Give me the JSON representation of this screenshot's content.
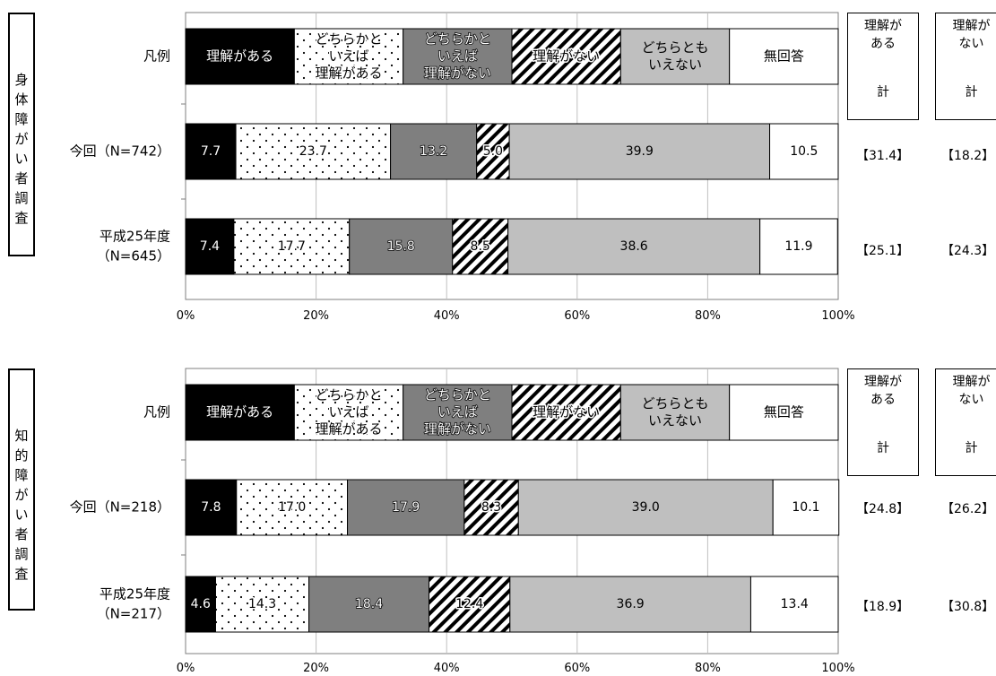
{
  "chart_data": [
    {
      "type": "bar",
      "stacked": true,
      "orientation": "horizontal",
      "group_label": "身体障がい者調査",
      "legend_row_label": "凡例",
      "categories": [
        "今回（N=742）",
        "平成25年度（N=645）"
      ],
      "category_lines": [
        [
          "今回（N=742）"
        ],
        [
          "平成25年度",
          "（N=645）"
        ]
      ],
      "series": [
        {
          "name": "理解がある",
          "values": [
            7.7,
            7.4
          ]
        },
        {
          "name": "どちらかといえば理解がある",
          "values": [
            23.7,
            17.7
          ]
        },
        {
          "name": "どちらかといえば理解がない",
          "values": [
            13.2,
            15.8
          ]
        },
        {
          "name": "理解がない",
          "values": [
            5.0,
            8.5
          ]
        },
        {
          "name": "どちらともいえない",
          "values": [
            39.9,
            38.6
          ]
        },
        {
          "name": "無回答",
          "values": [
            10.5,
            11.9
          ]
        }
      ],
      "totals": {
        "understand": [
          "【31.4】",
          "【25.1】"
        ],
        "not_understand": [
          "【18.2】",
          "【24.3】"
        ]
      },
      "xlim": [
        0,
        100
      ],
      "xticks": [
        "0%",
        "20%",
        "40%",
        "60%",
        "80%",
        "100%"
      ],
      "grid": true
    },
    {
      "type": "bar",
      "stacked": true,
      "orientation": "horizontal",
      "group_label": "知的障がい者調査",
      "legend_row_label": "凡例",
      "categories": [
        "今回（N=218）",
        "平成25年度（N=217）"
      ],
      "category_lines": [
        [
          "今回（N=218）"
        ],
        [
          "平成25年度",
          "（N=217）"
        ]
      ],
      "series": [
        {
          "name": "理解がある",
          "values": [
            7.8,
            4.6
          ]
        },
        {
          "name": "どちらかといえば理解がある",
          "values": [
            17.0,
            14.3
          ]
        },
        {
          "name": "どちらかといえば理解がない",
          "values": [
            17.9,
            18.4
          ]
        },
        {
          "name": "理解がない",
          "values": [
            8.3,
            12.4
          ]
        },
        {
          "name": "どちらともいえない",
          "values": [
            39.0,
            36.9
          ]
        },
        {
          "name": "無回答",
          "values": [
            10.1,
            13.4
          ]
        }
      ],
      "totals": {
        "understand": [
          "【24.8】",
          "【18.9】"
        ],
        "not_understand": [
          "【26.2】",
          "【30.8】"
        ]
      },
      "xlim": [
        0,
        100
      ],
      "xticks": [
        "0%",
        "20%",
        "40%",
        "60%",
        "80%",
        "100%"
      ],
      "grid": true
    }
  ],
  "legend_segments": [
    {
      "lines": [
        "理解がある"
      ],
      "style": "black"
    },
    {
      "lines": [
        "どちらかと",
        "いえば",
        "理解がある"
      ],
      "style": "dots"
    },
    {
      "lines": [
        "どちらかと",
        "いえば",
        "理解がない"
      ],
      "style": "darkgray"
    },
    {
      "lines": [
        "理解がない"
      ],
      "style": "hatch"
    },
    {
      "lines": [
        "どちらとも",
        "いえない"
      ],
      "style": "lightgray"
    },
    {
      "lines": [
        "無回答"
      ],
      "style": "white"
    }
  ],
  "summary_headers": {
    "understand": {
      "lines": [
        "理解が",
        "ある"
      ],
      "sub": "計"
    },
    "not_understand": {
      "lines": [
        "理解が",
        "ない"
      ],
      "sub": "計"
    }
  },
  "colors": {
    "black": "#000000",
    "darkgray": "#7f7f7f",
    "lightgray": "#bfbfbf",
    "white": "#ffffff",
    "grid": "#bfbfbf"
  }
}
